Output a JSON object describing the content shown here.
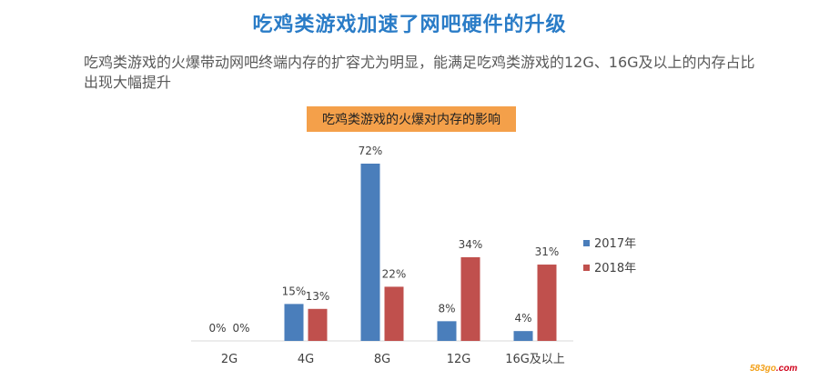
{
  "header": {
    "title": "吃鸡类游戏加速了网吧硬件的升级",
    "subtitle": "吃鸡类游戏的火爆带动网吧终端内存的扩容尤为明显，能满足吃鸡类游戏的12G、16G及以上的内存占比出现大幅提升"
  },
  "watermark": {
    "part1": "583go",
    "part2": ".com"
  },
  "chart_data": {
    "type": "bar",
    "title": "吃鸡类游戏的火爆对内存的影响",
    "title_bg": "#f4a04a",
    "categories": [
      "2G",
      "4G",
      "8G",
      "12G",
      "16G及以上"
    ],
    "unit": "%",
    "ylim": [
      0,
      72
    ],
    "grid": false,
    "legend_position": "right",
    "series": [
      {
        "name": "2017年",
        "color": "#4a7ebb",
        "values": [
          0,
          15,
          72,
          8,
          4
        ]
      },
      {
        "name": "2018年",
        "color": "#c0504d",
        "values": [
          0,
          13,
          22,
          34,
          31
        ]
      }
    ]
  }
}
